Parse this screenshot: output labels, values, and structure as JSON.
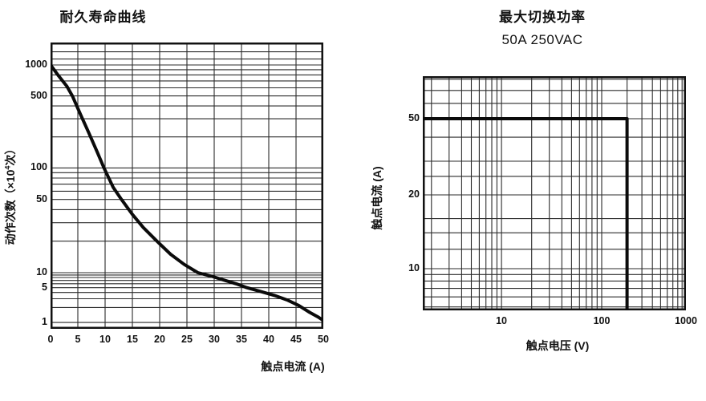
{
  "style": {
    "background": "#ffffff",
    "grid_color": "#2b2b2b",
    "border_color": "#111111",
    "text_color": "#111111"
  },
  "chart_data": [
    {
      "id": "endurance",
      "type": "line",
      "title": "耐久寿命曲线",
      "xlabel": "触点电流 (A)",
      "ylabel": {
        "prefix": "动作次数（×10",
        "sup": "4",
        "suffix": "次）"
      },
      "line_color": "#0b0b0b",
      "x_axis": {
        "scale": "linear",
        "min": 0,
        "max": 50,
        "gridlines": [
          0,
          5,
          10,
          15,
          20,
          25,
          30,
          35,
          40,
          45,
          50
        ],
        "labeled_ticks": [
          0,
          5,
          10,
          15,
          20,
          25,
          30,
          35,
          40,
          45,
          50
        ]
      },
      "y_axis": {
        "scale": "log-anchored",
        "anchors": [
          [
            2000,
            0
          ],
          [
            1000,
            0.0784
          ],
          [
            100,
            0.438
          ],
          [
            10,
            0.804
          ],
          [
            1,
            0.978
          ],
          [
            0.74,
            1
          ]
        ],
        "gridlines": [
          1500,
          1200,
          1000,
          900,
          800,
          700,
          600,
          500,
          400,
          300,
          200,
          100,
          90,
          80,
          70,
          60,
          50,
          40,
          30,
          20,
          10,
          9,
          8,
          7,
          6,
          5,
          4,
          3,
          2,
          1
        ],
        "labeled_ticks": [
          1000,
          500,
          100,
          50,
          10,
          5,
          1
        ]
      },
      "series": [
        {
          "name": "life-curve",
          "points": [
            [
              0,
              1000
            ],
            [
              1.5,
              780
            ],
            [
              3,
              620
            ],
            [
              4,
              500
            ],
            [
              5.5,
              330
            ],
            [
              7,
              220
            ],
            [
              8.5,
              145
            ],
            [
              9.8,
              100
            ],
            [
              11.5,
              65
            ],
            [
              13,
              50
            ],
            [
              15,
              36
            ],
            [
              17,
              27
            ],
            [
              19.5,
              20
            ],
            [
              22,
              15
            ],
            [
              24.5,
              12
            ],
            [
              27,
              10
            ],
            [
              29.5,
              8.5
            ],
            [
              32,
              7
            ],
            [
              34,
              6
            ],
            [
              36,
              5
            ],
            [
              38.5,
              4.2
            ],
            [
              41,
              3.5
            ],
            [
              43.5,
              2.8
            ],
            [
              45.5,
              2.2
            ],
            [
              47.5,
              1.6
            ],
            [
              49,
              1.3
            ],
            [
              50,
              1.1
            ]
          ]
        }
      ]
    },
    {
      "id": "switching",
      "type": "line",
      "title": "最大切换功率",
      "subtitle": "50A 250VAC",
      "xlabel": "触点电压 (V)",
      "ylabel": {
        "prefix": "触点电流 (A)",
        "sup": "",
        "suffix": ""
      },
      "line_color": "#0b0b0b",
      "x_axis": {
        "scale": "log-anchored",
        "anchors": [
          [
            1.64,
            0
          ],
          [
            10,
            0.299
          ],
          [
            100,
            0.68
          ],
          [
            1000,
            1
          ]
        ],
        "gridlines": [
          2,
          3,
          4,
          5,
          6,
          7,
          8,
          9,
          10,
          20,
          30,
          40,
          50,
          60,
          70,
          80,
          90,
          100,
          200,
          300,
          400,
          500,
          600,
          700,
          800,
          900,
          1000
        ],
        "labeled_ticks": [
          10,
          100,
          1000
        ]
      },
      "y_axis": {
        "scale": "log-anchored",
        "anchors": [
          [
            83,
            0
          ],
          [
            50,
            0.1815
          ],
          [
            20,
            0.5068
          ],
          [
            10,
            0.822
          ],
          [
            4.7,
            1
          ]
        ],
        "gridlines": [
          80,
          70,
          60,
          50,
          40,
          30,
          25,
          20,
          16,
          14,
          12,
          10,
          9,
          8,
          7,
          6,
          5
        ],
        "labeled_ticks": [
          50,
          20,
          10
        ]
      },
      "series": [
        {
          "name": "max-switching-boundary",
          "points": [
            [
              1.64,
              50
            ],
            [
              200,
              50
            ],
            [
              200,
              4.7
            ]
          ]
        }
      ]
    }
  ]
}
